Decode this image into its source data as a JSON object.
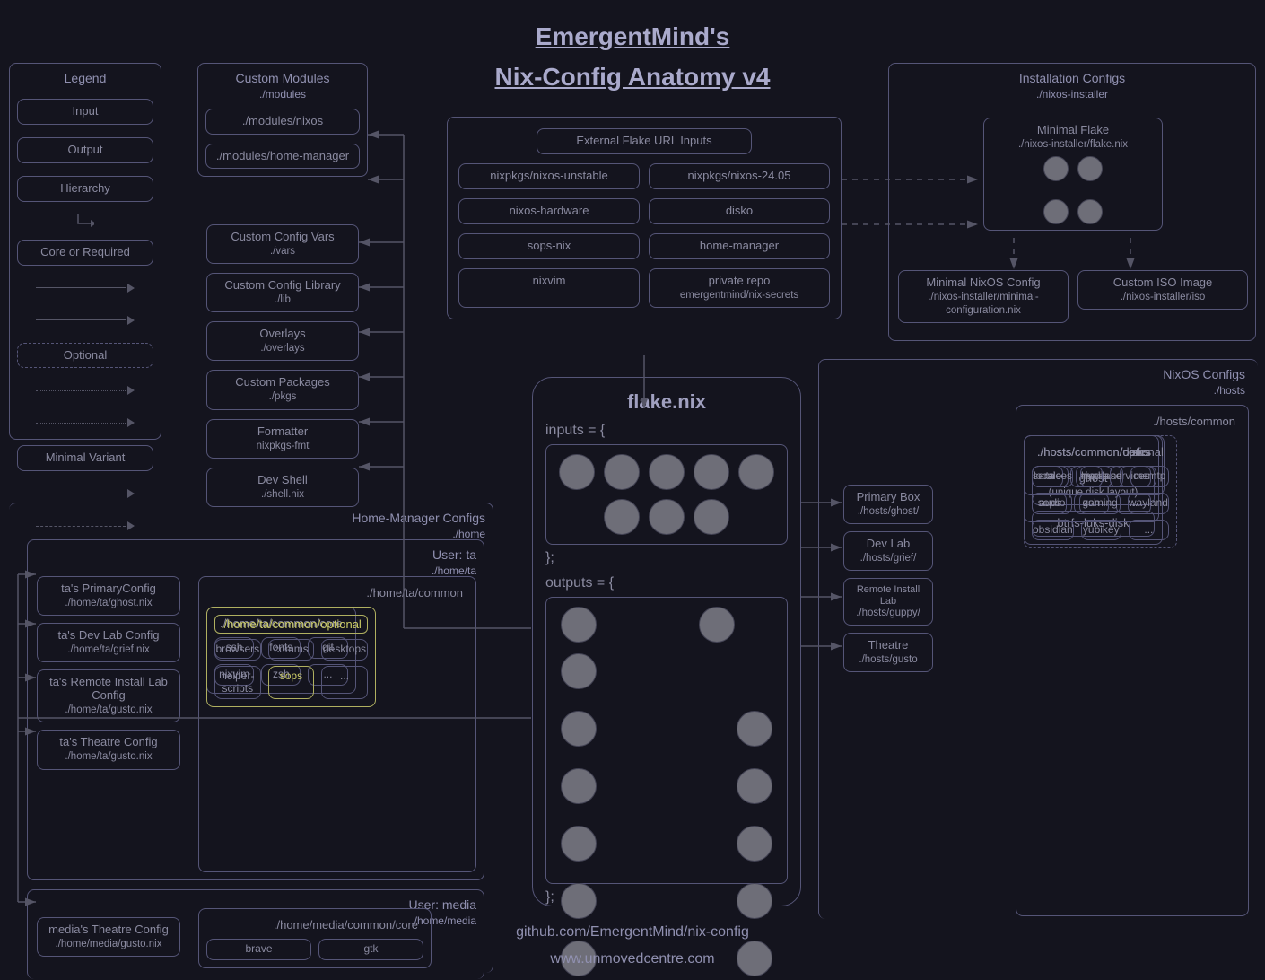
{
  "title": {
    "line1": "EmergentMind's",
    "line2": "Nix-Config Anatomy v4"
  },
  "legend": {
    "title": "Legend",
    "input": "Input",
    "output": "Output",
    "hierarchy": "Hierarchy",
    "core": "Core or Required",
    "optional": "Optional",
    "minimal": "Minimal Variant"
  },
  "custom_modules": {
    "title": "Custom Modules",
    "sub": "./modules",
    "nixos": "./modules/nixos",
    "home_manager": "./modules/home-manager"
  },
  "vars": {
    "t": "Custom Config Vars",
    "s": "./vars"
  },
  "lib": {
    "t": "Custom Config Library",
    "s": "./lib"
  },
  "overlays": {
    "t": "Overlays",
    "s": "./overlays"
  },
  "pkgs": {
    "t": "Custom Packages",
    "s": "./pkgs"
  },
  "fmt": {
    "t": "Formatter",
    "s": "nixpkgs-fmt"
  },
  "shell": {
    "t": "Dev Shell",
    "s": "./shell.nix"
  },
  "ext_flake": {
    "title": "External Flake URL Inputs",
    "items": [
      "nixpkgs/nixos-unstable",
      "nixpkgs/nixos-24.05",
      "nixos-hardware",
      "disko",
      "sops-nix",
      "home-manager",
      "nixvim",
      "private repo\nemergentmind/nix-secrets"
    ]
  },
  "install": {
    "title": "Installation Configs",
    "sub": "./nixos-installer",
    "minimal_flake": {
      "t": "Minimal Flake",
      "s": "./nixos-installer/flake.nix"
    },
    "min_cfg": {
      "t": "Minimal NixOS Config",
      "s": "./nixos-installer/minimal-configuration.nix"
    },
    "iso": {
      "t": "Custom ISO Image",
      "s": "./nixos-installer/iso"
    }
  },
  "flake": {
    "title": "flake.nix",
    "inputs_lbl": "inputs = {",
    "outputs_lbl": "outputs = {",
    "close": "};"
  },
  "host_links": {
    "primary": {
      "t": "Primary Box",
      "s": "./hosts/ghost/"
    },
    "devlab": {
      "t": "Dev Lab",
      "s": "./hosts/grief/"
    },
    "remote": {
      "t": "Remote Install Lab",
      "s": "./hosts/guppy/"
    },
    "theatre": {
      "t": "Theatre",
      "s": "./hosts/gusto"
    }
  },
  "nixos_cfg": {
    "title": "NixOS Configs",
    "sub": "./hosts",
    "common": "./hosts/common",
    "disks_hdr": "./hosts/common/disks",
    "disk_ghost": {
      "t": "ghost",
      "s": "(unique disk layout)"
    },
    "disk_btrfs": "btrfs-luks-disk",
    "users_hdr": "./hosts/common/users",
    "users": [
      "ta",
      "media",
      "..."
    ],
    "core_hdr": "./hosts/common/core",
    "core": [
      "locale",
      "nix",
      "services",
      "sops",
      "zsh",
      "..."
    ],
    "opt_hdr": "./hosts/common/optional",
    "opt": [
      "services",
      "hyprland",
      "msmtp",
      "audio",
      "gaming",
      "wayland",
      "obsidian",
      "yubikey",
      "..."
    ]
  },
  "hm": {
    "title": "Home-Manager Configs",
    "sub": "./home",
    "user_ta": {
      "t": "User: ta",
      "s": "./home/ta"
    },
    "user_media": {
      "t": "User: media",
      "s": "./home/media"
    },
    "ta_hosts": [
      {
        "t": "ta's PrimaryConfig",
        "s": "./home/ta/ghost.nix"
      },
      {
        "t": "ta's Dev Lab Config",
        "s": "./home/ta/grief.nix"
      },
      {
        "t": "ta's Remote Install Lab Config",
        "s": "./home/ta/gusto.nix"
      },
      {
        "t": "ta's Theatre Config",
        "s": "./home/ta/gusto.nix"
      }
    ],
    "media_host": {
      "t": "media's Theatre Config",
      "s": "./home/media/gusto.nix"
    },
    "ta_common": "./home/ta/common",
    "ta_core_hdr": "./home/ta/common/core",
    "ta_core": [
      "ssh",
      "fonts",
      "git",
      "nixvim",
      "zsh",
      "..."
    ],
    "ta_opt_hdr": "./home/ta/common/optional",
    "ta_opt": [
      "browsers",
      "comms",
      "desktops",
      "helper-scripts",
      "sops",
      "..."
    ],
    "media_core_hdr": "./home/media/common/core",
    "media_core": [
      "brave",
      "gtk"
    ]
  },
  "footer": {
    "gh": "github.com/EmergentMind/nix-config",
    "site": "www.unmovedcentre.com"
  },
  "style": {
    "bg": "#14141e",
    "fg": "#8a8aa0",
    "border": "#555577",
    "highlight": "#cccc66",
    "circle": "#6e6e78",
    "title_fg": "#aaaacc",
    "font_title": 28,
    "font_node": 13
  }
}
